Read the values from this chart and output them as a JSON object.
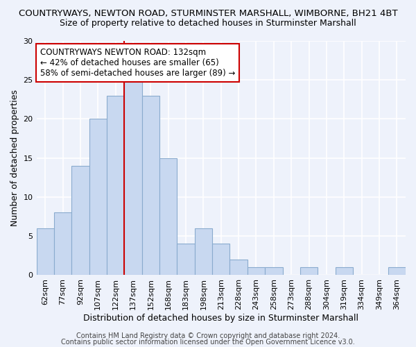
{
  "title": "COUNTRYWAYS, NEWTON ROAD, STURMINSTER MARSHALL, WIMBORNE, BH21 4BT",
  "subtitle": "Size of property relative to detached houses in Sturminster Marshall",
  "xlabel": "Distribution of detached houses by size in Sturminster Marshall",
  "ylabel": "Number of detached properties",
  "categories": [
    "62sqm",
    "77sqm",
    "92sqm",
    "107sqm",
    "122sqm",
    "137sqm",
    "152sqm",
    "168sqm",
    "183sqm",
    "198sqm",
    "213sqm",
    "228sqm",
    "243sqm",
    "258sqm",
    "273sqm",
    "288sqm",
    "304sqm",
    "319sqm",
    "334sqm",
    "349sqm",
    "364sqm"
  ],
  "values": [
    6,
    8,
    14,
    20,
    23,
    25,
    23,
    15,
    4,
    6,
    4,
    2,
    1,
    1,
    0,
    1,
    0,
    1,
    0,
    0,
    1
  ],
  "bar_color": "#c8d8f0",
  "bar_edge_color": "#8aabce",
  "property_line_label": "COUNTRYWAYS NEWTON ROAD: 132sqm",
  "annotation_line1": "← 42% of detached houses are smaller (65)",
  "annotation_line2": "58% of semi-detached houses are larger (89) →",
  "annotation_box_color": "#ffffff",
  "annotation_box_edge": "#cc0000",
  "line_color": "#cc0000",
  "property_line_index": 5,
  "ylim": [
    0,
    30
  ],
  "yticks": [
    0,
    5,
    10,
    15,
    20,
    25,
    30
  ],
  "footer1": "Contains HM Land Registry data © Crown copyright and database right 2024.",
  "footer2": "Contains public sector information licensed under the Open Government Licence v3.0.",
  "background_color": "#eef2fb",
  "grid_color": "#ffffff",
  "title_fontsize": 9.5,
  "subtitle_fontsize": 9,
  "axis_label_fontsize": 9,
  "tick_fontsize": 8,
  "annotation_fontsize": 8.5,
  "footer_fontsize": 7
}
